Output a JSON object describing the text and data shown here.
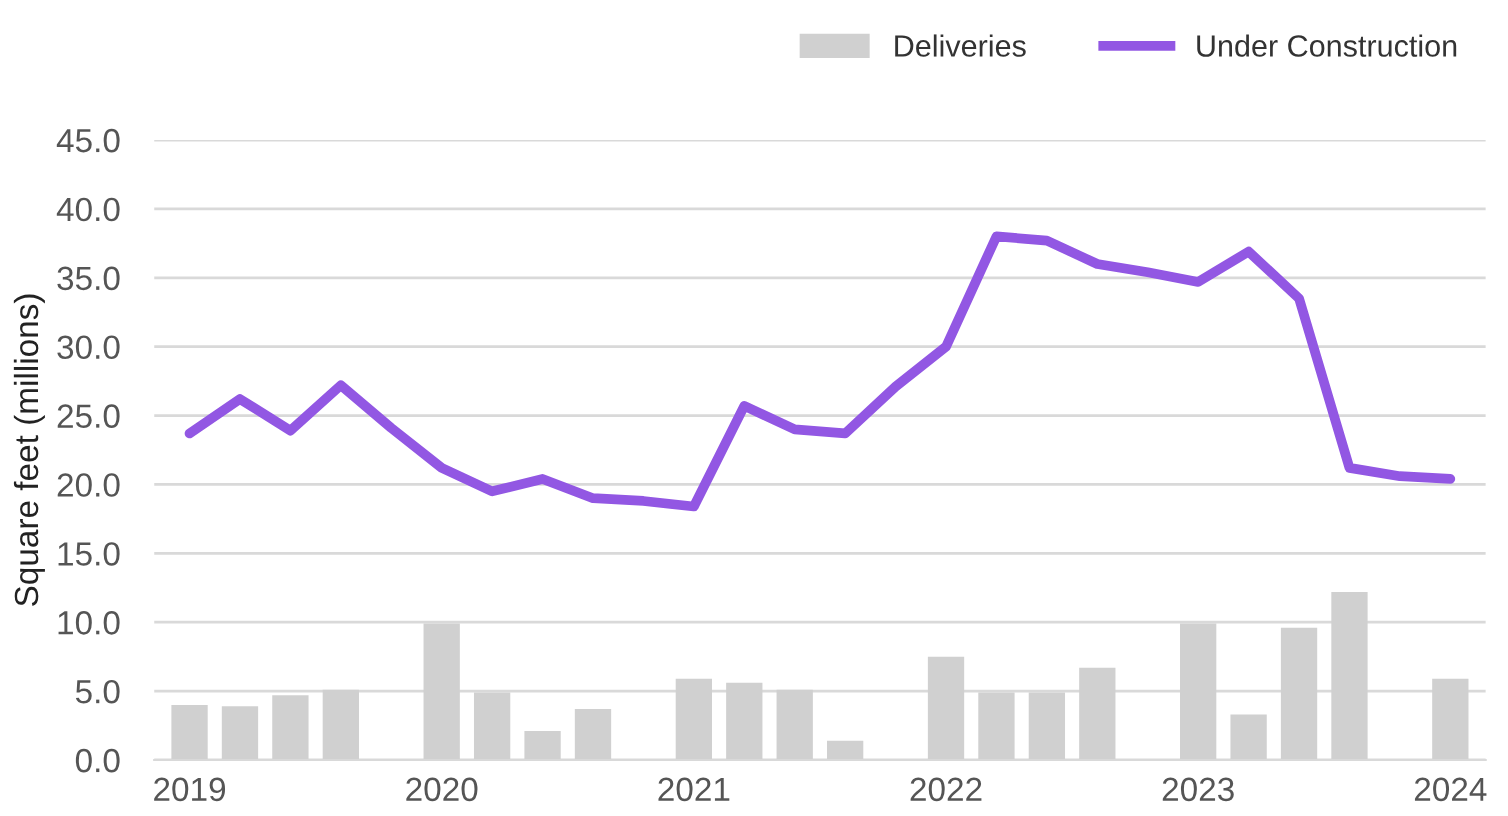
{
  "chart_data": {
    "type": "bar",
    "ylabel": "Square feet (millions)",
    "categories": [
      "2019",
      null,
      null,
      null,
      null,
      "2020",
      null,
      null,
      null,
      null,
      "2021",
      null,
      null,
      null,
      null,
      "2022",
      null,
      null,
      null,
      null,
      "2023",
      null,
      null,
      null,
      null,
      "2024"
    ],
    "series": [
      {
        "name": "Deliveries",
        "color": "#d0d0d0",
        "values": [
          4.0,
          3.9,
          4.7,
          5.1,
          null,
          9.9,
          4.9,
          2.1,
          3.7,
          null,
          5.9,
          5.6,
          5.1,
          1.4,
          null,
          7.5,
          4.9,
          4.9,
          6.7,
          null,
          9.9,
          3.3,
          9.6,
          12.2,
          null,
          5.9
        ]
      },
      {
        "name": "Under Construction",
        "type": "line",
        "color": "#9257e3",
        "values": [
          23.7,
          26.2,
          23.9,
          27.2,
          24.1,
          21.2,
          19.5,
          20.4,
          19.0,
          18.8,
          18.4,
          25.7,
          24.0,
          23.7,
          27.1,
          30.0,
          38.0,
          37.7,
          36.0,
          35.4,
          34.7,
          36.9,
          33.5,
          21.2,
          20.6,
          20.4
        ]
      }
    ],
    "ylim": [
      0,
      45
    ],
    "yticks": [
      {
        "value": 0,
        "label": "0.0"
      },
      {
        "value": 5,
        "label": "5.0"
      },
      {
        "value": 10,
        "label": "10.0"
      },
      {
        "value": 15,
        "label": "15.0"
      },
      {
        "value": 20,
        "label": "20.0"
      },
      {
        "value": 25,
        "label": "25.0"
      },
      {
        "value": 30,
        "label": "30.0"
      },
      {
        "value": 35,
        "label": "35.0"
      },
      {
        "value": 40,
        "label": "40.0"
      },
      {
        "value": 45,
        "label": "45.0"
      }
    ],
    "grid": "y",
    "legend": "top right"
  }
}
